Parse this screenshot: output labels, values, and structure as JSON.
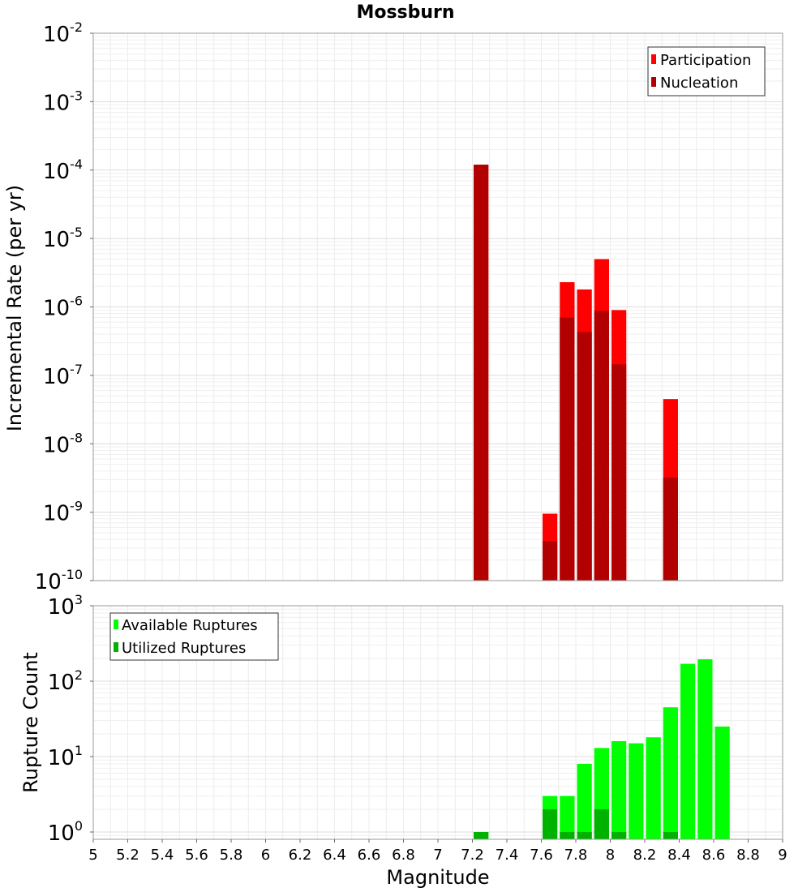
{
  "chart_data": [
    {
      "type": "bar",
      "title": "Mossburn",
      "xlabel": "",
      "ylabel": "Incremental Rate (per yr)",
      "yscale": "log",
      "ylim": [
        1e-10,
        0.01
      ],
      "xlim": [
        5,
        9
      ],
      "ytick_exponents": [
        "-10",
        "-9",
        "-8",
        "-7",
        "-6",
        "-5",
        "-4",
        "-3",
        "-2"
      ],
      "ytick_base": "10",
      "bar_width": 0.1,
      "legend": {
        "position": "top-right",
        "entries": [
          "Participation",
          "Nucleation"
        ]
      },
      "colors": {
        "Participation": "#ff0000",
        "Nucleation": "#b20000"
      },
      "series": [
        {
          "name": "Participation",
          "x": [
            7.25,
            7.65,
            7.75,
            7.85,
            7.95,
            8.05,
            8.35
          ],
          "values": [
            0.00012,
            9.5e-10,
            2.3e-06,
            1.8e-06,
            5e-06,
            9e-07,
            4.5e-08
          ]
        },
        {
          "name": "Nucleation",
          "x": [
            7.25,
            7.65,
            7.75,
            7.85,
            7.95,
            8.05,
            8.35
          ],
          "values": [
            0.00012,
            3.8e-10,
            7e-07,
            4.3e-07,
            8.8e-07,
            1.45e-07,
            3.2e-09
          ]
        }
      ]
    },
    {
      "type": "bar",
      "title": "",
      "xlabel": "Magnitude",
      "ylabel": "Rupture Count",
      "yscale": "log",
      "ylim": [
        0.8,
        1000
      ],
      "xlim": [
        5,
        9
      ],
      "xticks": [
        "5",
        "5.2",
        "5.4",
        "5.6",
        "5.8",
        "6",
        "6.2",
        "6.4",
        "6.6",
        "6.8",
        "7",
        "7.2",
        "7.4",
        "7.6",
        "7.8",
        "8",
        "8.2",
        "8.4",
        "8.6",
        "8.8",
        "9"
      ],
      "ytick_exponents": [
        "0",
        "1",
        "2",
        "3"
      ],
      "ytick_base": "10",
      "bar_width": 0.1,
      "legend": {
        "position": "top-left",
        "entries": [
          "Available Ruptures",
          "Utilized Ruptures"
        ]
      },
      "colors": {
        "Available Ruptures": "#00ff00",
        "Utilized Ruptures": "#00b200"
      },
      "series": [
        {
          "name": "Available Ruptures",
          "x": [
            7.25,
            7.65,
            7.75,
            7.85,
            7.95,
            8.05,
            8.15,
            8.25,
            8.35,
            8.45,
            8.55,
            8.65
          ],
          "values": [
            1,
            3,
            3,
            8,
            13,
            16,
            15,
            18,
            45,
            170,
            195,
            25
          ]
        },
        {
          "name": "Utilized Ruptures",
          "x": [
            7.25,
            7.65,
            7.75,
            7.85,
            7.95,
            8.05,
            8.35
          ],
          "values": [
            1,
            2,
            1,
            1,
            2,
            1,
            1
          ]
        }
      ]
    }
  ]
}
